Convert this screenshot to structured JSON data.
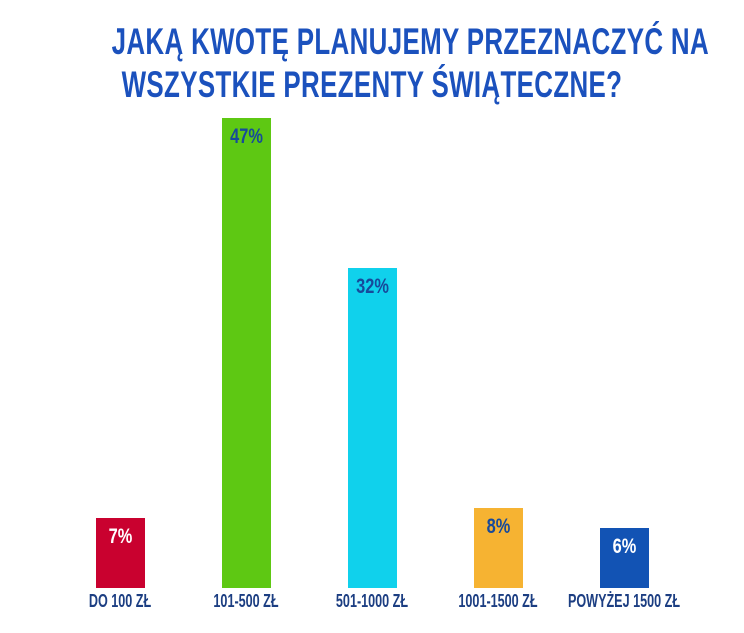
{
  "page": {
    "background": "#ffffff"
  },
  "chart_data": {
    "type": "bar",
    "title": "JAKĄ KWOTĘ PLANUJEMY PRZEZNACZYĆ NA WSZYSTKIE PREZENTY ŚWIĄTECZNE?",
    "title_lines": [
      "JAKĄ KWOTĘ PLANUJEMY PRZEZNACZYĆ NA",
      "WSZYSTKIE PREZENTY ŚWIĄTECZNE?"
    ],
    "title_color": "#1b51bd",
    "unit": "%",
    "categories": [
      "DO 100 ZŁ",
      "101-500 ZŁ",
      "501-1000 ZŁ",
      "1001-1500 ZŁ",
      "POWYŻEJ 1500 ZŁ"
    ],
    "values": [
      7,
      47,
      32,
      8,
      6
    ],
    "value_labels": [
      "7%",
      "47%",
      "32%",
      "8%",
      "6%"
    ],
    "bar_colors": [
      "#c9012f",
      "#5ec813",
      "#10d1ec",
      "#f6b332",
      "#1253b4"
    ],
    "value_label_colors": [
      "#ffffff",
      "#174a9b",
      "#174a9b",
      "#174a9b",
      "#ffffff"
    ],
    "category_label_color": "#1c3e82",
    "xlabel": "",
    "ylabel": "",
    "ylim": [
      0,
      50
    ],
    "grid": false,
    "legend": "none"
  }
}
